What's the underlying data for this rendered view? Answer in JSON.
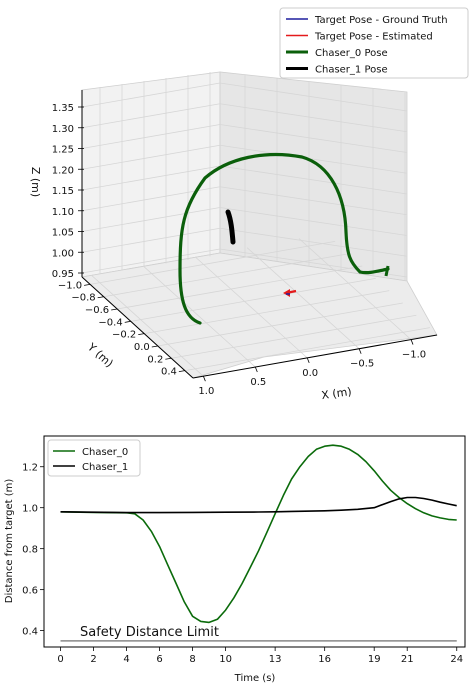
{
  "chart_data": [
    {
      "type": "line",
      "projection": "3d",
      "xlabel": "X (m)",
      "ylabel": "Y (m)",
      "zlabel": "Z (m)",
      "x_ticks": [
        "1.0",
        "0.5",
        "0.0",
        "−0.5",
        "−1.0"
      ],
      "y_ticks": [
        "−1.0",
        "−0.8",
        "−0.6",
        "−0.4",
        "−0.2",
        "0.0",
        "0.2",
        "0.4"
      ],
      "z_ticks": [
        "0.95",
        "1.00",
        "1.05",
        "1.10",
        "1.15",
        "1.20",
        "1.25",
        "1.30",
        "1.35"
      ],
      "zlim": [
        0.93,
        1.37
      ],
      "grid": true,
      "legend_position": "top-right",
      "legend": [
        {
          "label": "Target Pose - Ground Truth",
          "color": "#1f1f9e"
        },
        {
          "label": "Target Pose - Estimated",
          "color": "#e41a1c"
        },
        {
          "label": "Chaser_0 Pose",
          "color": "#0b5f0b"
        },
        {
          "label": "Chaser_1 Pose",
          "color": "#000000"
        }
      ]
    },
    {
      "type": "line",
      "xlabel": "Time (s)",
      "ylabel": "Distance from target (m)",
      "xlim": [
        -1,
        24.5
      ],
      "ylim": [
        0.32,
        1.35
      ],
      "x_ticks": [
        0,
        2,
        4,
        6,
        8,
        10,
        13,
        16,
        19,
        21,
        24
      ],
      "y_ticks": [
        0.4,
        0.6,
        0.8,
        1.0,
        1.2
      ],
      "grid": false,
      "legend_position": "top-left",
      "annotation": "Safety Distance Limit",
      "safety_limit": 0.35,
      "safety_color": "#888888",
      "series": [
        {
          "name": "Chaser_0",
          "color": "#0b6b0b",
          "x": [
            0,
            2,
            4,
            4.5,
            5,
            5.5,
            6,
            6.5,
            7,
            7.5,
            8,
            8.5,
            9,
            9.5,
            10,
            10.5,
            11,
            11.5,
            12,
            12.5,
            13,
            13.5,
            14,
            14.5,
            15,
            15.5,
            16,
            16.5,
            17,
            17.5,
            18,
            18.5,
            19,
            19.5,
            20,
            20.5,
            21,
            21.5,
            22,
            22.5,
            23,
            23.5,
            24
          ],
          "y": [
            0.98,
            0.977,
            0.975,
            0.97,
            0.94,
            0.885,
            0.81,
            0.72,
            0.63,
            0.54,
            0.47,
            0.445,
            0.44,
            0.455,
            0.5,
            0.56,
            0.63,
            0.71,
            0.79,
            0.88,
            0.97,
            1.06,
            1.14,
            1.2,
            1.25,
            1.285,
            1.3,
            1.305,
            1.3,
            1.285,
            1.26,
            1.225,
            1.18,
            1.13,
            1.085,
            1.05,
            1.02,
            0.995,
            0.975,
            0.96,
            0.95,
            0.943,
            0.94
          ]
        },
        {
          "name": "Chaser_1",
          "color": "#000000",
          "x": [
            0,
            2,
            4,
            6,
            8,
            10,
            12,
            13,
            14,
            16,
            17,
            18,
            19,
            19.5,
            20,
            20.5,
            21,
            21.5,
            22,
            22.5,
            23,
            23.5,
            24
          ],
          "y": [
            0.98,
            0.978,
            0.976,
            0.976,
            0.977,
            0.978,
            0.979,
            0.98,
            0.982,
            0.985,
            0.988,
            0.992,
            1.0,
            1.015,
            1.03,
            1.043,
            1.05,
            1.05,
            1.045,
            1.037,
            1.027,
            1.018,
            1.01
          ]
        }
      ]
    }
  ]
}
